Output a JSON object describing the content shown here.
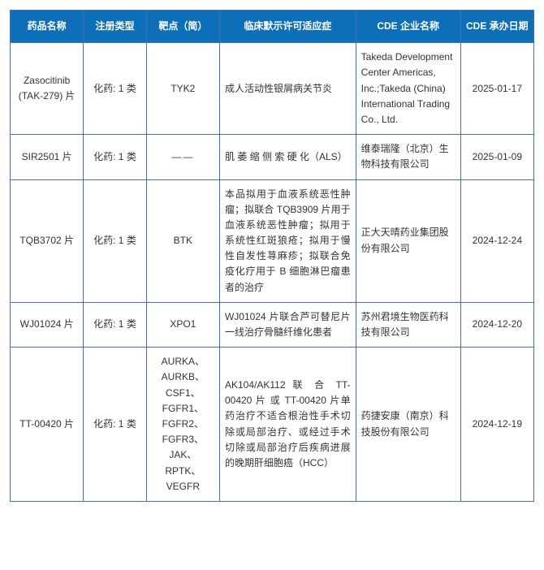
{
  "table": {
    "header_bg": "#0d6fb8",
    "header_color": "#ffffff",
    "border_color": "#4472a8",
    "cell_bg": "#ffffff",
    "cell_color": "#333333",
    "columns": [
      {
        "key": "name",
        "label": "药品名称"
      },
      {
        "key": "reg",
        "label": "注册类型"
      },
      {
        "key": "target",
        "label": "靶点（简）"
      },
      {
        "key": "indication",
        "label": "临床默示许可适应症"
      },
      {
        "key": "company",
        "label": "CDE 企业名称"
      },
      {
        "key": "date",
        "label": "CDE 承办日期"
      }
    ],
    "rows": [
      {
        "name": "Zasocitinib (TAK-279) 片",
        "reg": "化药: 1 类",
        "target": "TYK2",
        "indication": "成人活动性银屑病关节炎",
        "company": "Takeda Development Center Americas, Inc.;Takeda (China) International Trading Co., Ltd.",
        "date": "2025-01-17"
      },
      {
        "name": "SIR2501 片",
        "reg": "化药: 1 类",
        "target": "——",
        "indication": "肌 萎 缩 侧 索 硬 化（ALS）",
        "company": "维泰瑞隆（北京）生物科技有限公司",
        "date": "2025-01-09"
      },
      {
        "name": "TQB3702 片",
        "reg": "化药: 1 类",
        "target": "BTK",
        "indication": "本品拟用于血液系统恶性肿瘤；拟联合 TQB3909 片用于血液系统恶性肿瘤；拟用于系统性红斑狼疮；拟用于慢性自发性荨麻疹；拟联合免疫化疗用于 B 细胞淋巴瘤患者的治疗",
        "company": "正大天晴药业集团股份有限公司",
        "date": "2024-12-24"
      },
      {
        "name": "WJ01024 片",
        "reg": "化药: 1 类",
        "target": "XPO1",
        "indication": "WJ01024 片联合芦可替尼片一线治疗骨髓纤维化患者",
        "company": "苏州君境生物医药科技有限公司",
        "date": "2024-12-20"
      },
      {
        "name": "TT-00420 片",
        "reg": "化药: 1 类",
        "target": "AURKA、AURKB、CSF1、FGFR1、FGFR2、FGFR3、JAK、RPTK、VEGFR",
        "indication": "AK104/AK112 联 合 TT-00420 片 或 TT-00420 片单药治疗不适合根治性手术切除或局部治疗、或经过手术切除或局部治疗后疾病进展的晚期肝细胞癌（HCC）",
        "company": "药捷安康（南京）科技股份有限公司",
        "date": "2024-12-19"
      }
    ]
  }
}
